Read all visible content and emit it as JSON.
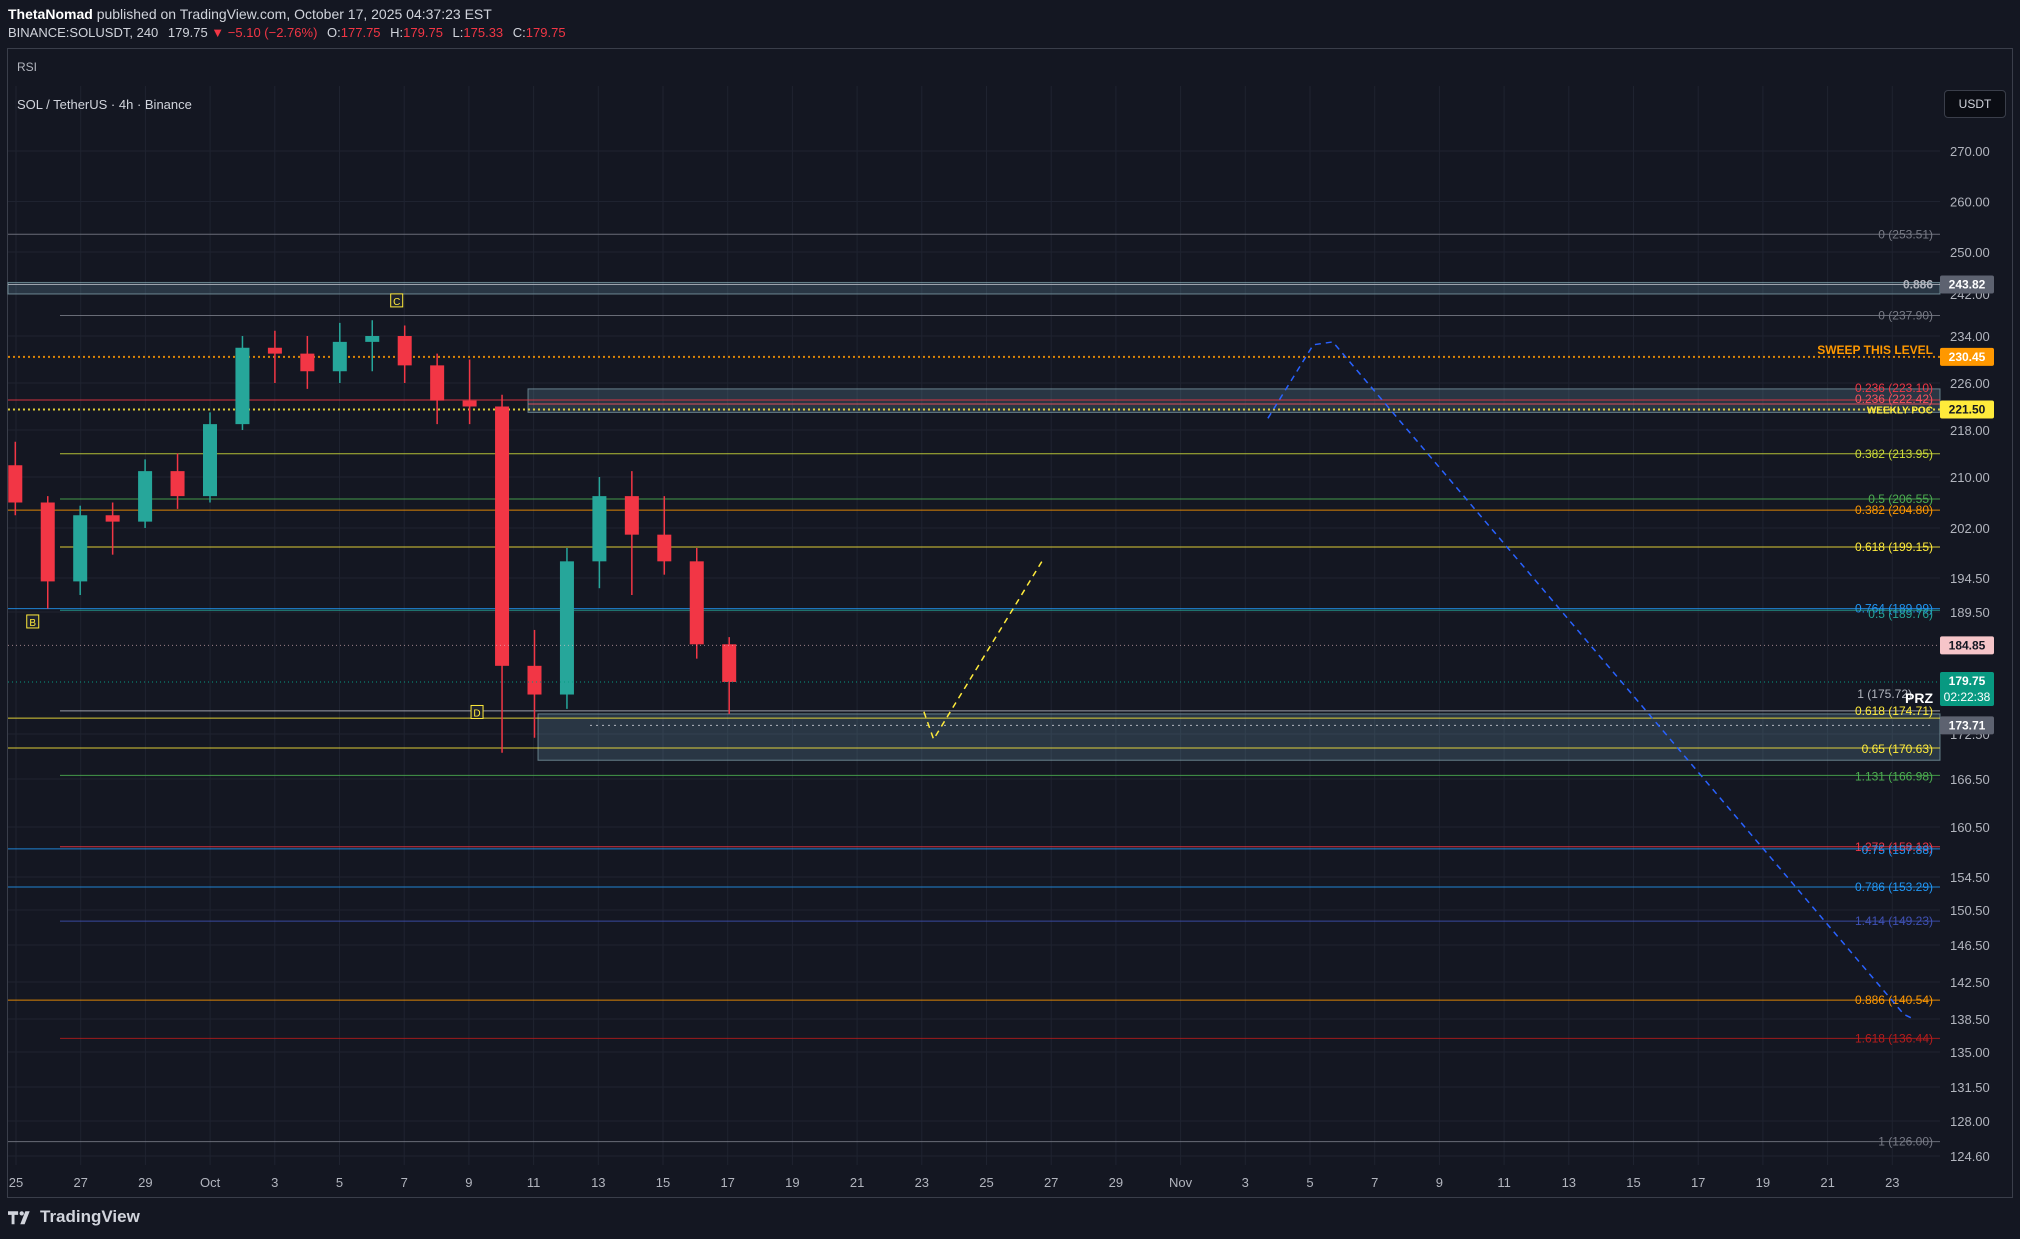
{
  "header": {
    "publisher": "ThetaNomad",
    "published_text": "published on TradingView.com, October 17, 2025 04:37:23 EST",
    "symbol_line": "BINANCE:SOLUSDT, 240",
    "last": "179.75",
    "change": "▼ −5.10 (−2.76%)",
    "open_label": "O:",
    "open": "177.75",
    "high_label": "H:",
    "high": "179.75",
    "low_label": "L:",
    "low": "175.33",
    "close_label": "C:",
    "close": "179.75"
  },
  "indicator_label": "RSI",
  "symbol_title": "SOL / TetherUS · 4h · Binance",
  "currency_button": "USDT",
  "footer_brand": "TradingView",
  "colors": {
    "up": "#26a69a",
    "down": "#f23645",
    "bg": "#141722",
    "grid": "#1f2330",
    "axis_text": "#b2b5be",
    "orange": "#ff9800",
    "yellow": "#ffeb3b"
  },
  "chart_data": {
    "type": "candlestick",
    "instrument": "SOL / TetherUS",
    "timeframe": "4h",
    "y_axis_ticks": [
      "270.00",
      "260.00",
      "250.00",
      "242.00",
      "234.00",
      "226.00",
      "218.00",
      "210.00",
      "202.00",
      "194.50",
      "189.50",
      "172.50",
      "166.50",
      "160.50",
      "154.50",
      "150.50",
      "146.50",
      "142.50",
      "138.50",
      "135.00",
      "131.50",
      "128.00",
      "124.60"
    ],
    "x_axis_ticks": [
      "25",
      "27",
      "29",
      "Oct",
      "3",
      "5",
      "7",
      "9",
      "11",
      "13",
      "15",
      "17",
      "19",
      "21",
      "23",
      "25",
      "27",
      "29",
      "Nov",
      "3",
      "5",
      "7",
      "9",
      "11",
      "13",
      "15",
      "17",
      "19",
      "21",
      "23"
    ],
    "price_tags": [
      {
        "label": "243.82",
        "value": 243.82,
        "color": "#5d6270"
      },
      {
        "label": "230.45",
        "value": 230.45,
        "color": "#ff9800"
      },
      {
        "label": "221.50",
        "value": 221.5,
        "color": "#ffeb3b"
      },
      {
        "label": "184.85",
        "value": 184.85,
        "color": "#f6c5c9"
      },
      {
        "label": "179.75",
        "sub": "02:22:38",
        "value": 179.75,
        "color": "#089981"
      },
      {
        "label": "173.71",
        "value": 173.71,
        "color": "#5d6270"
      }
    ],
    "levels": [
      {
        "label": "0 (253.51)",
        "value": 253.51,
        "color": "#787b86"
      },
      {
        "label": "0.886",
        "value": 243.82,
        "color": "#b2b5be"
      },
      {
        "label": "0 (237.90)",
        "value": 237.9,
        "color": "#787b86"
      },
      {
        "label": "SWEEP THIS LEVEL",
        "value": 230.45,
        "color": "#ff9800"
      },
      {
        "label": "0.236 (223.10)",
        "value": 223.1,
        "color": "#f23645"
      },
      {
        "label": "0.236 (222.42)",
        "value": 222.42,
        "color": "#f7525f"
      },
      {
        "label": "WEEKLY POC",
        "value": 221.5,
        "color": "#ffeb3b"
      },
      {
        "label": "0.382 (213.95)",
        "value": 213.95,
        "color": "#cddc39"
      },
      {
        "label": "0.5 (206.55)",
        "value": 206.55,
        "color": "#4caf50"
      },
      {
        "label": "0.382 (204.80)",
        "value": 204.8,
        "color": "#ff9800"
      },
      {
        "label": "0.618 (199.15)",
        "value": 199.15,
        "color": "#ffeb3b"
      },
      {
        "label": "0.764 (189.99)",
        "value": 189.99,
        "color": "#2196f3"
      },
      {
        "label": "0.5 (189.76)",
        "value": 189.76,
        "color": "#26a69a"
      },
      {
        "label": "1 (175.72)",
        "value": 175.72,
        "color": "#b2b5be"
      },
      {
        "label": "PRZ",
        "value": 175.72,
        "color": "#ffffff"
      },
      {
        "label": "0.618 (174.71)",
        "value": 174.71,
        "color": "#ffeb3b"
      },
      {
        "label": "0.65 (170.63)",
        "value": 170.63,
        "color": "#ffeb3b"
      },
      {
        "label": "1.131 (166.98)",
        "value": 166.98,
        "color": "#4caf50"
      },
      {
        "label": "1.272 (158.13)",
        "value": 158.13,
        "color": "#f23645"
      },
      {
        "label": "0.75 (157.88)",
        "value": 157.88,
        "color": "#2196f3"
      },
      {
        "label": "0.786 (153.29)",
        "value": 153.29,
        "color": "#2196f3"
      },
      {
        "label": "1.414 (149.23)",
        "value": 149.23,
        "color": "#3f51b5"
      },
      {
        "label": "0.886 (140.54)",
        "value": 140.54,
        "color": "#ff9800"
      },
      {
        "label": "1.618 (136.44)",
        "value": 136.44,
        "color": "#b71c1c"
      },
      {
        "label": "1 (126.00)",
        "value": 126.0,
        "color": "#787b86"
      }
    ],
    "pattern_points": [
      {
        "label": "B",
        "value": 189.8
      },
      {
        "label": "C",
        "value": 238.4
      },
      {
        "label": "D",
        "value": 175.5
      }
    ],
    "zones": [
      {
        "from": 242.0,
        "to": 244.2
      },
      {
        "from": 221.0,
        "to": 225.0
      },
      {
        "from": 169.0,
        "to": 175.3
      }
    ],
    "candles": [
      {
        "date": "Sep 25",
        "o": 212.0,
        "h": 216.0,
        "l": 204.0,
        "c": 206.0
      },
      {
        "date": "Sep 26",
        "o": 206.0,
        "h": 207.0,
        "l": 190.0,
        "c": 194.0
      },
      {
        "date": "Sep 27",
        "o": 194.0,
        "h": 205.5,
        "l": 192.0,
        "c": 204.0
      },
      {
        "date": "Sep 28",
        "o": 204.0,
        "h": 206.0,
        "l": 198.0,
        "c": 203.0
      },
      {
        "date": "Sep 29",
        "o": 203.0,
        "h": 213.0,
        "l": 202.0,
        "c": 211.0
      },
      {
        "date": "Sep 30",
        "o": 211.0,
        "h": 214.0,
        "l": 205.0,
        "c": 207.0
      },
      {
        "date": "Oct 1",
        "o": 207.0,
        "h": 221.0,
        "l": 206.0,
        "c": 219.0
      },
      {
        "date": "Oct 2",
        "o": 219.0,
        "h": 234.0,
        "l": 218.0,
        "c": 232.0
      },
      {
        "date": "Oct 3",
        "o": 232.0,
        "h": 235.0,
        "l": 226.0,
        "c": 231.0
      },
      {
        "date": "Oct 4",
        "o": 231.0,
        "h": 234.0,
        "l": 225.0,
        "c": 228.0
      },
      {
        "date": "Oct 5",
        "o": 228.0,
        "h": 236.5,
        "l": 226.0,
        "c": 233.0
      },
      {
        "date": "Oct 6",
        "o": 233.0,
        "h": 237.0,
        "l": 228.0,
        "c": 234.0
      },
      {
        "date": "Oct 7",
        "o": 234.0,
        "h": 236.0,
        "l": 226.0,
        "c": 229.0
      },
      {
        "date": "Oct 8",
        "o": 229.0,
        "h": 231.0,
        "l": 219.0,
        "c": 223.0
      },
      {
        "date": "Oct 9",
        "o": 223.0,
        "h": 230.0,
        "l": 219.0,
        "c": 222.0
      },
      {
        "date": "Oct 10",
        "o": 222.0,
        "h": 224.0,
        "l": 170.0,
        "c": 182.0
      },
      {
        "date": "Oct 11",
        "o": 182.0,
        "h": 187.0,
        "l": 172.0,
        "c": 178.0
      },
      {
        "date": "Oct 12",
        "o": 178.0,
        "h": 199.0,
        "l": 176.0,
        "c": 197.0
      },
      {
        "date": "Oct 13",
        "o": 197.0,
        "h": 210.0,
        "l": 193.0,
        "c": 207.0
      },
      {
        "date": "Oct 14",
        "o": 207.0,
        "h": 211.0,
        "l": 192.0,
        "c": 201.0
      },
      {
        "date": "Oct 15",
        "o": 201.0,
        "h": 207.0,
        "l": 195.0,
        "c": 197.0
      },
      {
        "date": "Oct 16",
        "o": 197.0,
        "h": 199.0,
        "l": 183.0,
        "c": 185.0
      },
      {
        "date": "Oct 17",
        "o": 185.0,
        "h": 186.0,
        "l": 175.3,
        "c": 179.75
      }
    ],
    "projections": [
      {
        "style": "dashed",
        "color": "#ffeb3b",
        "points": [
          [
            "Oct 23",
            175.6
          ],
          [
            "Oct 23.3",
            171.8
          ],
          [
            "Oct 26.7",
            197.5
          ]
        ]
      },
      {
        "style": "dashed",
        "color": "#2962ff",
        "points": [
          [
            "Nov 2.6",
            220.0
          ],
          [
            "Nov 4",
            232.5
          ],
          [
            "Nov 4.6",
            233.0
          ],
          [
            "Nov 22.2",
            139.0
          ],
          [
            "Nov 22.5",
            138.5
          ]
        ]
      }
    ],
    "ylim": [
      122.0,
      276.0
    ],
    "grid": true,
    "legend": "none"
  }
}
